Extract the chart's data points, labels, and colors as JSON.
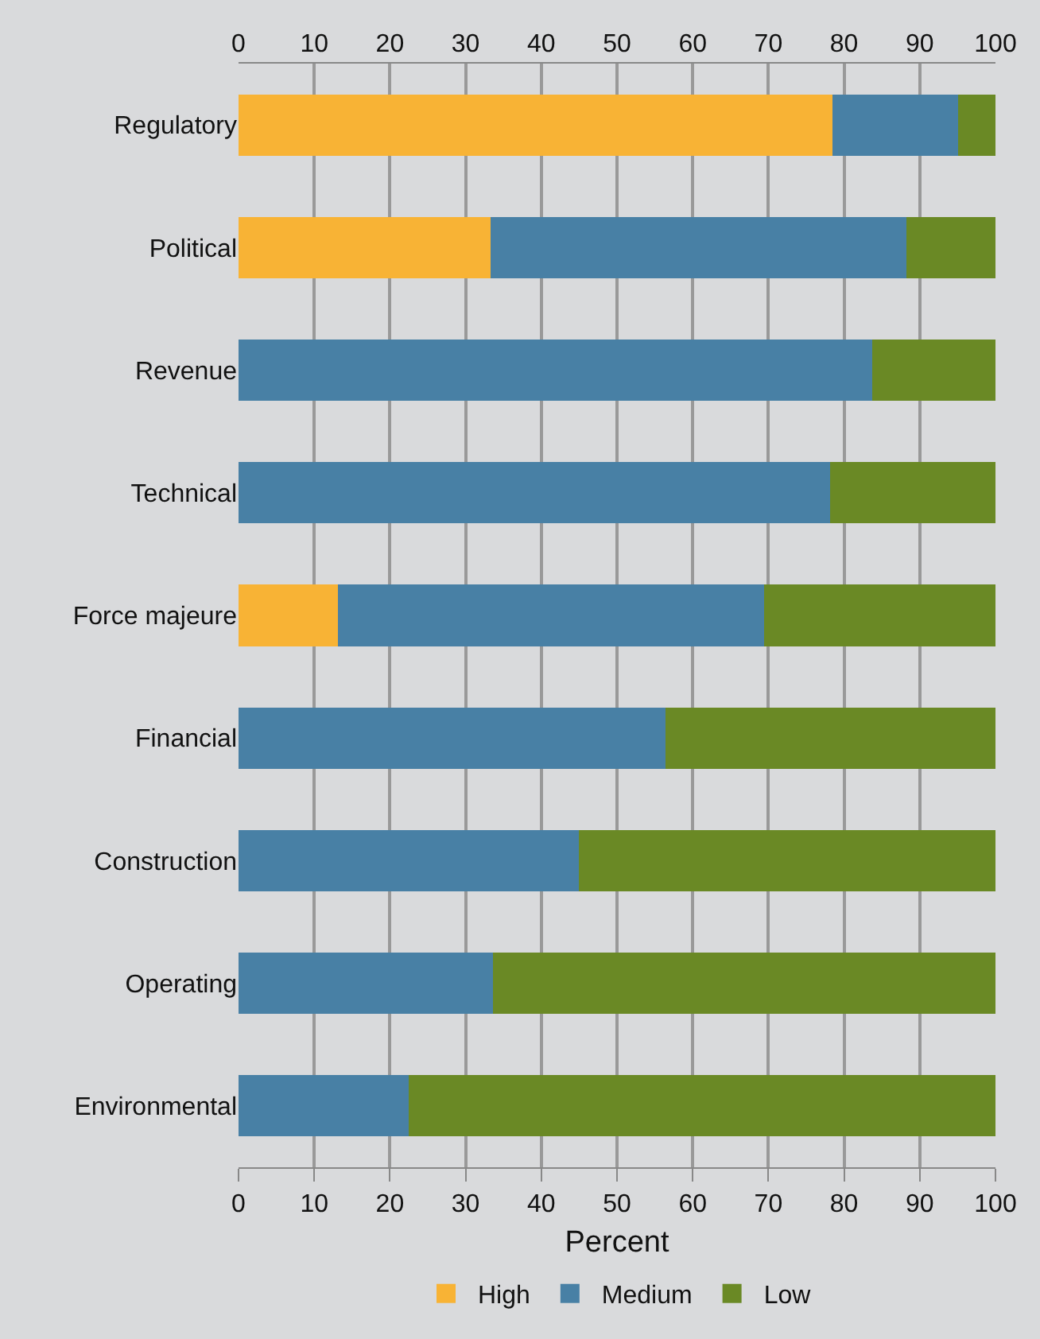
{
  "chart_data": {
    "type": "bar",
    "orientation": "horizontal",
    "stacked": true,
    "xlabel": "Percent",
    "categories": [
      "Regulatory",
      "Political",
      "Revenue",
      "Technical",
      "Force majeure",
      "Financial",
      "Construction",
      "Operating",
      "Environmental"
    ],
    "series": [
      {
        "name": "High",
        "color": "#f8b335",
        "values": [
          78.5,
          33.3,
          null,
          null,
          13.1,
          null,
          null,
          null,
          null
        ]
      },
      {
        "name": "Medium",
        "color": "#4880a5",
        "values": [
          16.6,
          54.9,
          83.7,
          78.1,
          56.3,
          56.4,
          45.0,
          33.6,
          22.5
        ]
      },
      {
        "name": "Low",
        "color": "#6a8925",
        "values": [
          4.9,
          11.8,
          16.3,
          21.9,
          30.6,
          43.6,
          55.0,
          66.4,
          77.5
        ]
      }
    ],
    "xlim": [
      0,
      100
    ],
    "xticks": [
      0,
      10,
      20,
      30,
      40,
      50,
      60,
      70,
      80,
      90,
      100
    ],
    "x2lim": [
      0,
      100
    ],
    "x2ticks": [
      0,
      10,
      20,
      30,
      40,
      50,
      60,
      70,
      80,
      90,
      100
    ],
    "grid": "x",
    "legend": "bottom"
  }
}
